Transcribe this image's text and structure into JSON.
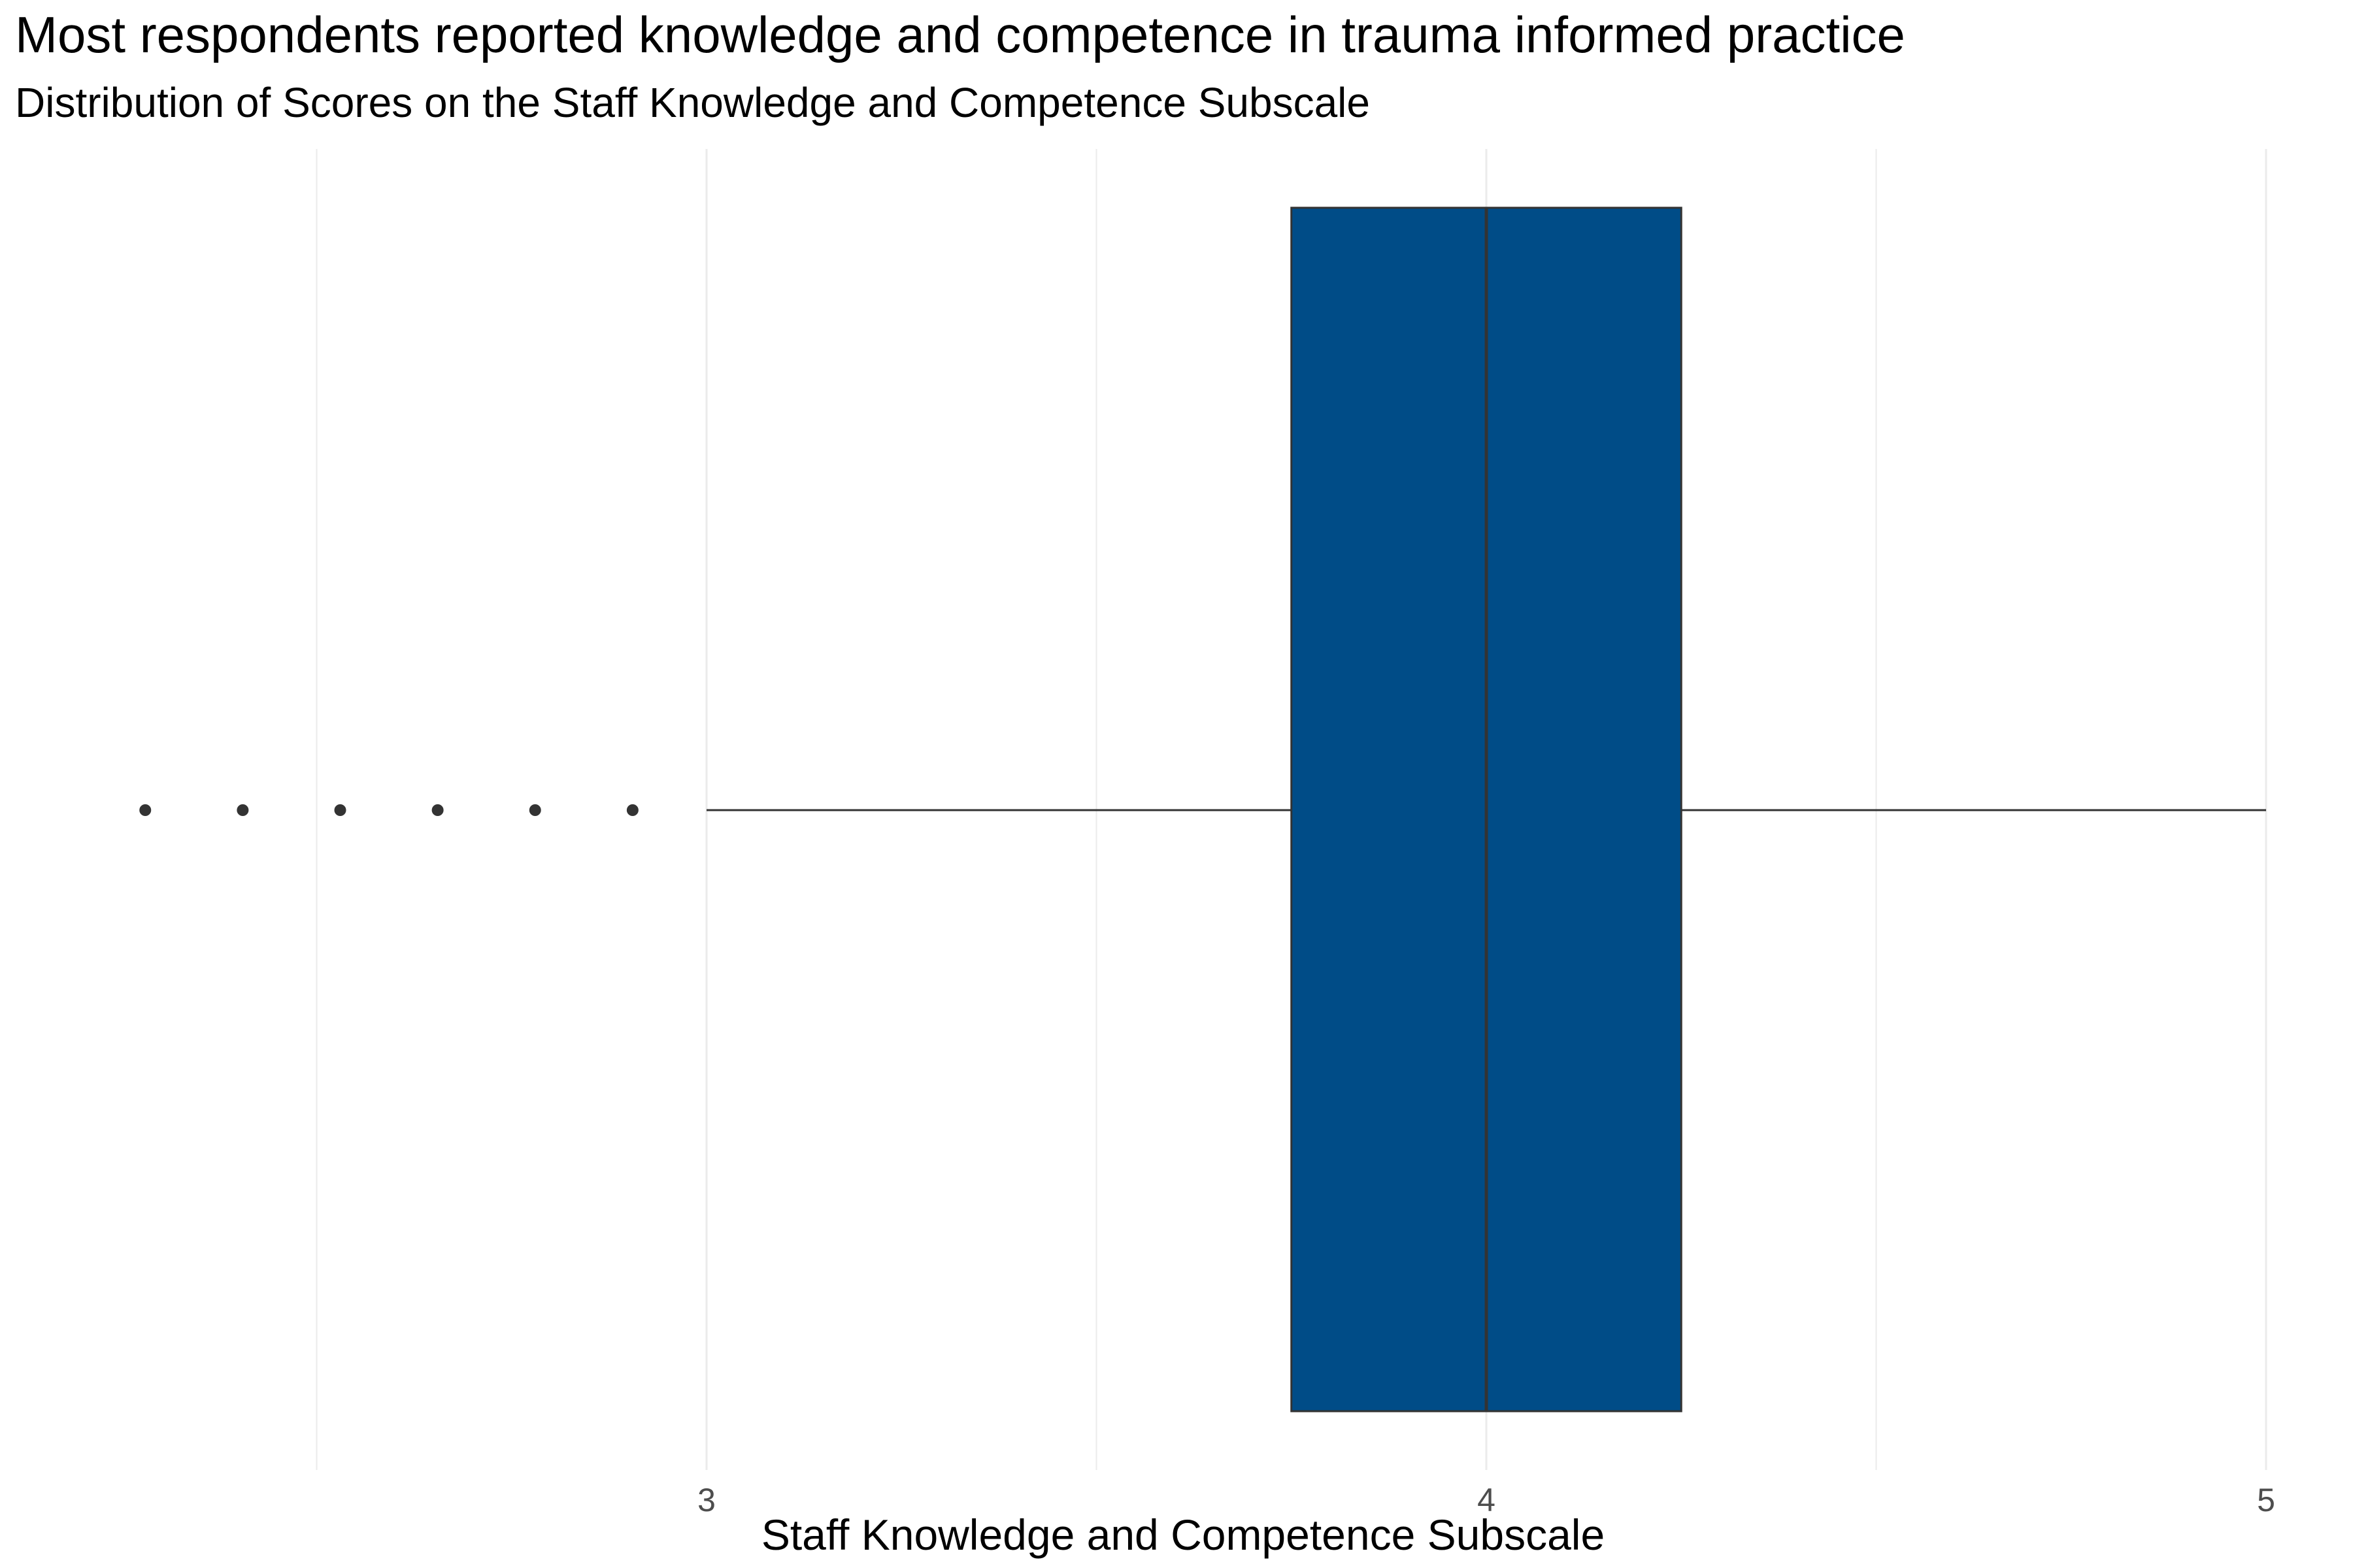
{
  "chart_data": {
    "type": "boxplot",
    "title": "Most respondents reported knowledge and competence in trauma informed practice",
    "subtitle": "Distribution of Scores on the Staff Knowledge and Competence Subscale",
    "xlabel": "Staff Knowledge and Competence Subscale",
    "ylabel": "",
    "xlim": [
      2.25,
      5.05
    ],
    "x_ticks": [
      3,
      4,
      5
    ],
    "x_tick_labels": [
      "3",
      "4",
      "5"
    ],
    "grid": true,
    "box": {
      "whisker_low": 3.0,
      "q1": 3.75,
      "median": 4.0,
      "q3": 4.25,
      "whisker_high": 5.0,
      "outliers": [
        2.25,
        2.375,
        2.5,
        2.625,
        2.75,
        2.875
      ]
    },
    "colors": {
      "box_fill": "#004C87",
      "box_stroke": "#333333",
      "grid": "#ebebeb",
      "points": "#333333"
    }
  }
}
